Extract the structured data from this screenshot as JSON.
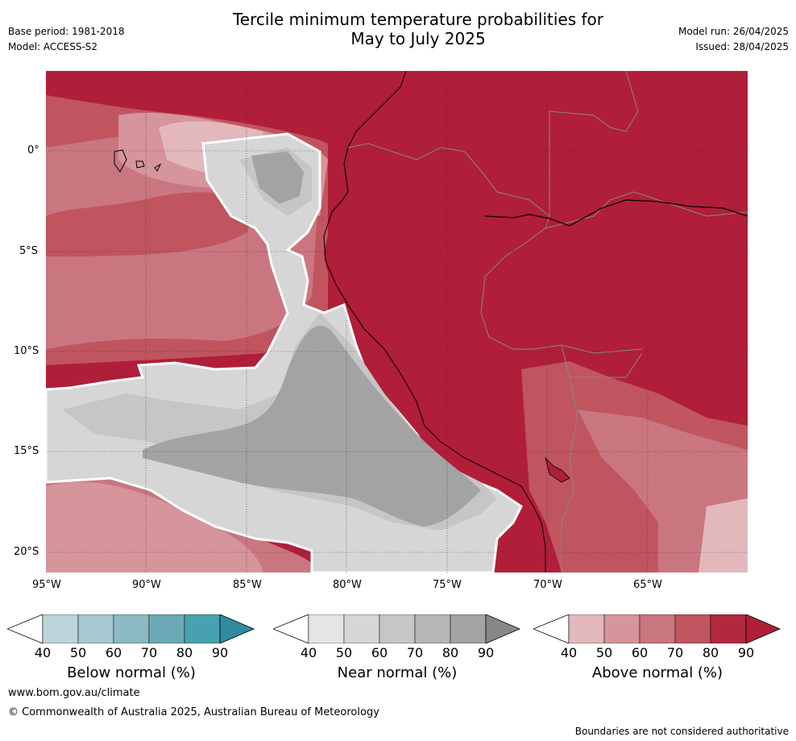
{
  "header": {
    "title_line1": "Tercile minimum temperature probabilities for",
    "title_line2": "May to July 2025",
    "base_period": "Base period: 1981-2018",
    "model": "Model: ACCESS-S2",
    "model_run": "Model run: 26/04/2025",
    "issued": "Issued: 28/04/2025"
  },
  "map": {
    "lat_labels": [
      "0°",
      "5°S",
      "10°S",
      "15°S",
      "20°S"
    ],
    "lon_labels": [
      "95°W",
      "90°W",
      "85°W",
      "80°W",
      "75°W",
      "70°W",
      "65°W"
    ]
  },
  "colorbars": [
    {
      "label": "Below normal (%)",
      "ticks": [
        "40",
        "50",
        "60",
        "70",
        "80",
        "90"
      ],
      "colors": [
        "#bcd5da",
        "#a6c9cf",
        "#8bbac2",
        "#6aaab6",
        "#48a1af",
        "#2e8c9d"
      ]
    },
    {
      "label": "Near normal (%)",
      "ticks": [
        "40",
        "50",
        "60",
        "70",
        "80",
        "90"
      ],
      "colors": [
        "#e5e5e5",
        "#d6d6d6",
        "#c6c6c6",
        "#b6b6b6",
        "#a3a3a3",
        "#888888"
      ]
    },
    {
      "label": "Above normal (%)",
      "ticks": [
        "40",
        "50",
        "60",
        "70",
        "80",
        "90"
      ],
      "colors": [
        "#e2b8bd",
        "#d6949b",
        "#ca7680",
        "#c0555f",
        "#b2283f",
        "#b01e39"
      ]
    }
  ],
  "footer": {
    "url": "www.bom.gov.au/climate",
    "copyright": "© Commonwealth of Australia 2025, Australian Bureau of Meteorology",
    "disclaimer": "Boundaries are not considered authoritative"
  }
}
